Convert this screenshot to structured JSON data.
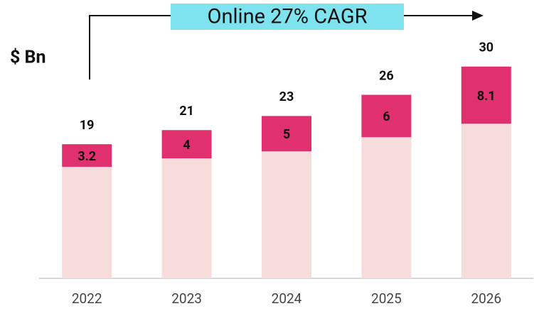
{
  "chart_data": {
    "type": "stacked_bar",
    "annotation": "Online 27% CAGR",
    "y_label": "$ Bn",
    "categories": [
      "2022",
      "2023",
      "2024",
      "2025",
      "2026"
    ],
    "totals": [
      19,
      21,
      23,
      26,
      30
    ],
    "series": [
      {
        "color": "#f7dcdc",
        "values": [
          15.8,
          17,
          18,
          20,
          21.9
        ]
      },
      {
        "color": "#e0306e",
        "values": [
          3.2,
          4,
          5,
          6,
          8.1
        ],
        "show_labels": true
      }
    ],
    "ylim": [
      0,
      34
    ]
  }
}
